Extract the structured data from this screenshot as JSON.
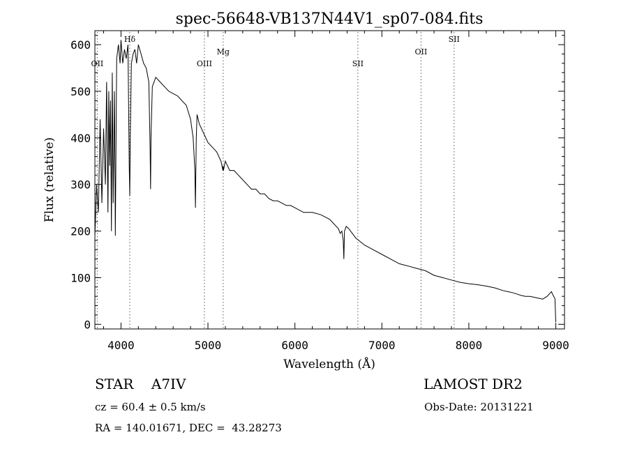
{
  "chart_data": {
    "type": "line",
    "title": "spec-56648-VB137N44V1_sp07-084.fits",
    "xlabel": "Wavelength (Å)",
    "ylabel": "Flux (relative)",
    "xlim": [
      3700,
      9100
    ],
    "ylim": [
      -10,
      630
    ],
    "xticks": [
      4000,
      5000,
      6000,
      7000,
      8000,
      9000
    ],
    "yticks": [
      0,
      100,
      200,
      300,
      400,
      500,
      600
    ],
    "grid": false,
    "series": [
      {
        "x": [
          3700,
          3720,
          3740,
          3760,
          3780,
          3800,
          3820,
          3835,
          3850,
          3860,
          3870,
          3880,
          3890,
          3900,
          3910,
          3925,
          3935,
          3950,
          3970,
          3990,
          4000,
          4020,
          4040,
          4060,
          4080,
          4095,
          4101,
          4107,
          4120,
          4140,
          4160,
          4180,
          4200,
          4230,
          4260,
          4290,
          4320,
          4335,
          4340,
          4345,
          4360,
          4400,
          4450,
          4500,
          4550,
          4600,
          4650,
          4700,
          4750,
          4800,
          4830,
          4850,
          4856,
          4861,
          4866,
          4875,
          4900,
          4950,
          5000,
          5050,
          5100,
          5150,
          5172,
          5175,
          5178,
          5200,
          5250,
          5300,
          5350,
          5400,
          5450,
          5500,
          5550,
          5600,
          5650,
          5700,
          5750,
          5800,
          5850,
          5900,
          5950,
          6000,
          6100,
          6200,
          6300,
          6400,
          6500,
          6520,
          6540,
          6556,
          6563,
          6570,
          6590,
          6620,
          6700,
          6800,
          6900,
          7000,
          7100,
          7200,
          7300,
          7400,
          7500,
          7600,
          7700,
          7800,
          7900,
          8000,
          8100,
          8200,
          8300,
          8400,
          8450,
          8500,
          8550,
          8600,
          8650,
          8700,
          8750,
          8800,
          8850,
          8900,
          8950,
          8970,
          8990,
          9000
        ],
        "y": [
          190,
          300,
          240,
          440,
          260,
          420,
          300,
          520,
          240,
          500,
          340,
          480,
          200,
          540,
          260,
          500,
          190,
          570,
          600,
          560,
          610,
          560,
          590,
          570,
          600,
          340,
          275,
          400,
          560,
          580,
          590,
          560,
          600,
          580,
          560,
          550,
          520,
          380,
          290,
          400,
          510,
          530,
          520,
          510,
          500,
          495,
          490,
          480,
          470,
          440,
          400,
          330,
          250,
          330,
          400,
          450,
          430,
          410,
          390,
          380,
          370,
          350,
          330,
          340,
          330,
          350,
          330,
          330,
          320,
          310,
          300,
          290,
          290,
          280,
          280,
          270,
          265,
          265,
          260,
          255,
          255,
          250,
          240,
          240,
          235,
          225,
          205,
          195,
          200,
          180,
          140,
          200,
          210,
          205,
          185,
          170,
          160,
          150,
          140,
          130,
          125,
          120,
          115,
          105,
          100,
          95,
          90,
          87,
          85,
          82,
          78,
          72,
          70,
          68,
          65,
          62,
          60,
          60,
          58,
          56,
          54,
          60,
          70,
          62,
          55,
          5
        ]
      }
    ],
    "line_markers": [
      {
        "label": "OII",
        "x": 3727
      },
      {
        "label": "Hδ",
        "x": 4101
      },
      {
        "label": "OIII",
        "x": 4959
      },
      {
        "label": "Mg",
        "x": 5175
      },
      {
        "label": "SII",
        "x": 6724
      },
      {
        "label": "OII",
        "x": 7450
      },
      {
        "label": "SII",
        "x": 7830
      }
    ]
  },
  "footer": {
    "object_line": "STAR    A7IV",
    "survey": "LAMOST DR2",
    "cz_line": "cz = 60.4 ± 0.5 km/s",
    "obs_date": "Obs-Date: 20131221",
    "coords_line": "RA = 140.01671, DEC =  43.28273"
  }
}
